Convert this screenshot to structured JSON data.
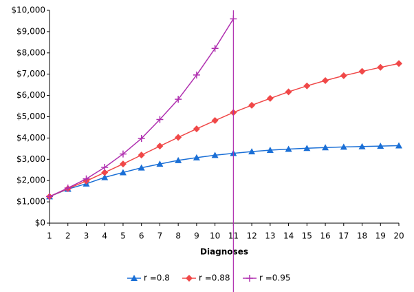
{
  "chart_data": {
    "type": "line",
    "x_label": "Diagnoses",
    "x": [
      1,
      2,
      3,
      4,
      5,
      6,
      7,
      8,
      9,
      10,
      11,
      12,
      13,
      14,
      15,
      16,
      17,
      18,
      19,
      20
    ],
    "xlim": [
      1,
      20
    ],
    "xticks": [
      1,
      2,
      3,
      4,
      5,
      6,
      7,
      8,
      9,
      10,
      11,
      12,
      13,
      14,
      15,
      16,
      17,
      18,
      19,
      20
    ],
    "ylim": [
      0,
      10000
    ],
    "yticks": [
      {
        "value": 0,
        "label": "$0"
      },
      {
        "value": 1000,
        "label": "$1,000"
      },
      {
        "value": 2000,
        "label": "$2,000"
      },
      {
        "value": 3000,
        "label": "$3,000"
      },
      {
        "value": 4000,
        "label": "$4,000"
      },
      {
        "value": 5000,
        "label": "$5,000"
      },
      {
        "value": 6000,
        "label": "$6,000"
      },
      {
        "value": 7000,
        "label": "$7,000"
      },
      {
        "value": 8000,
        "label": "$8,000"
      },
      {
        "value": 9000,
        "label": "$9,000"
      },
      {
        "value": 10000,
        "label": "$10,000"
      }
    ],
    "vline": 11,
    "vline_color": "#b030b0",
    "legend": "bottom",
    "series": [
      {
        "name": "r =0.8",
        "color": "#1a6fd6",
        "marker": "triangle",
        "values": [
          1250,
          1600,
          1850,
          2150,
          2380,
          2600,
          2780,
          2950,
          3080,
          3190,
          3280,
          3360,
          3430,
          3480,
          3520,
          3550,
          3580,
          3600,
          3620,
          3640
        ]
      },
      {
        "name": "r =0.88",
        "color": "#f04848",
        "marker": "diamond",
        "values": [
          1250,
          1620,
          1980,
          2380,
          2780,
          3200,
          3620,
          4030,
          4430,
          4820,
          5200,
          5540,
          5860,
          6170,
          6450,
          6700,
          6930,
          7130,
          7320,
          7500
        ]
      },
      {
        "name": "r =0.95",
        "color": "#b030b0",
        "marker": "plus",
        "values": [
          1250,
          1650,
          2080,
          2620,
          3250,
          3980,
          4870,
          5820,
          6960,
          8210,
          9600,
          null,
          null,
          null,
          null,
          null,
          null,
          null,
          null,
          null
        ]
      }
    ]
  }
}
